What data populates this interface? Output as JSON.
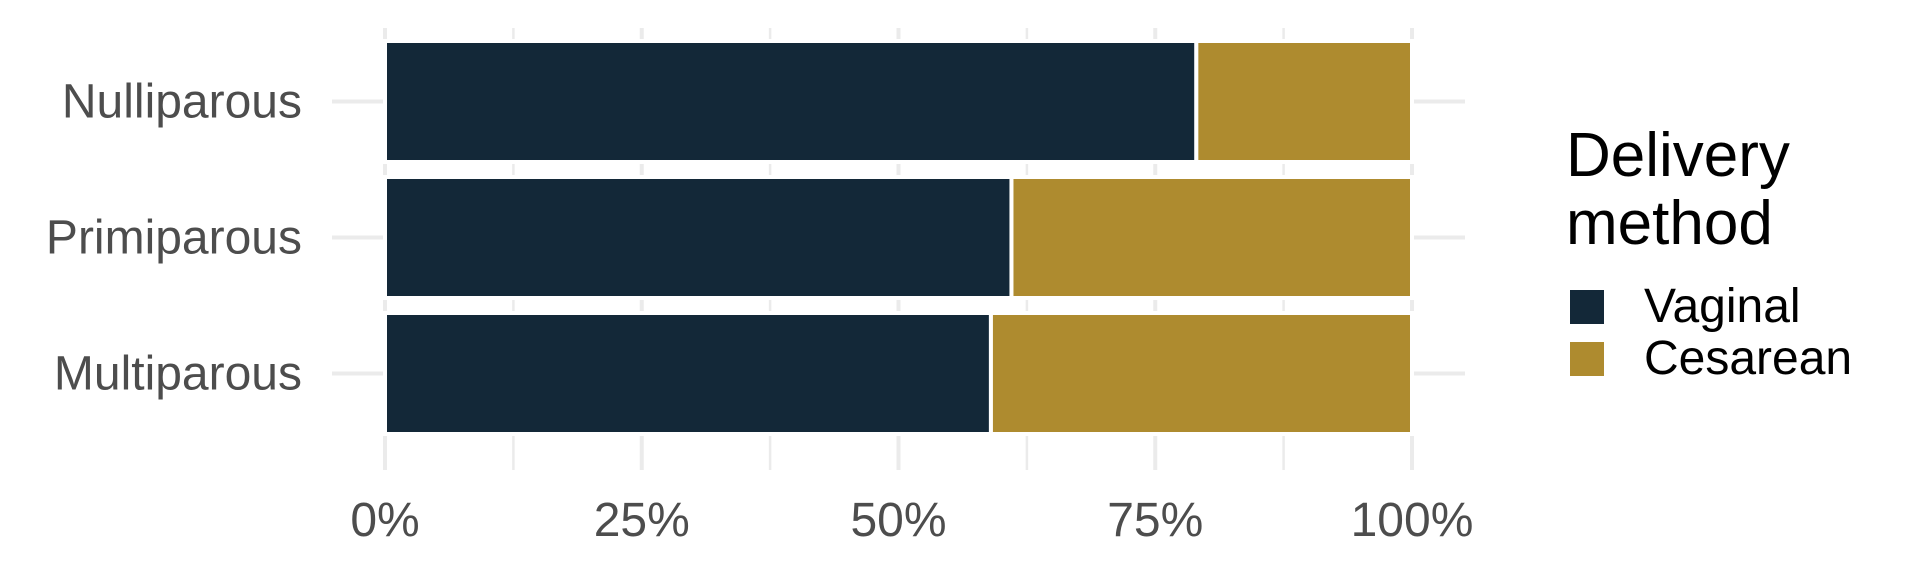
{
  "chart_data": {
    "type": "bar",
    "orientation": "horizontal",
    "stacked": "percent",
    "categories": [
      "Nulliparous",
      "Primiparous",
      "Multiparous"
    ],
    "series": [
      {
        "name": "Vaginal",
        "color": "#132838",
        "values": [
          79,
          61,
          59
        ]
      },
      {
        "name": "Cesarean",
        "color": "#ae8b2f",
        "values": [
          21,
          39,
          41
        ]
      }
    ],
    "xlim": [
      0,
      100
    ],
    "x_ticks": [
      "0%",
      "25%",
      "50%",
      "75%",
      "100%"
    ],
    "x_tick_values": [
      0,
      25,
      50,
      75,
      100
    ],
    "legend": {
      "title_lines": [
        "Delivery",
        "method"
      ],
      "position": "right"
    },
    "grid": true,
    "background": "#ffffff",
    "grid_color": "#ebebeb"
  }
}
